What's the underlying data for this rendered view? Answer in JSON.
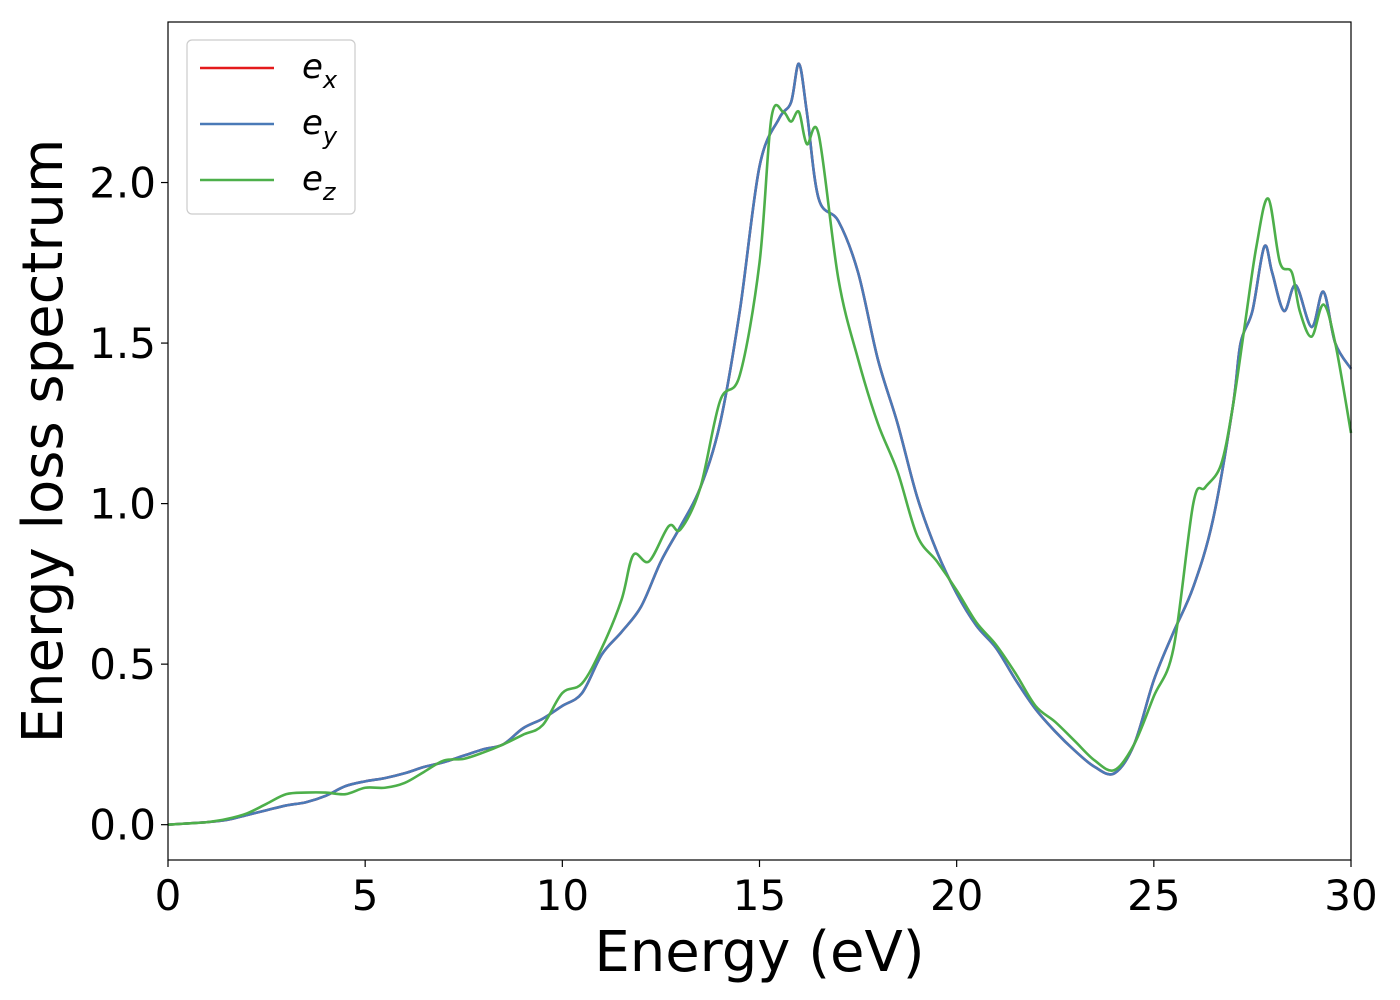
{
  "chart_data": {
    "type": "line",
    "xlabel": "Energy (eV)",
    "ylabel": "Energy loss spectrum",
    "xlim": [
      0,
      30
    ],
    "ylim": [
      -0.11,
      2.5
    ],
    "x_ticks": [
      "0",
      "5",
      "10",
      "15",
      "20",
      "25",
      "30"
    ],
    "y_ticks": [
      "0.0",
      "0.5",
      "1.0",
      "1.5",
      "2.0"
    ],
    "grid": false,
    "legend_position": "top-left",
    "series": [
      {
        "name": "e_x",
        "legend_base": "e",
        "legend_sub": "x",
        "color": "#e41a1c",
        "x": [
          0,
          0.5,
          1,
          1.5,
          2,
          2.5,
          3,
          3.5,
          4,
          4.5,
          5,
          5.5,
          6,
          6.5,
          7,
          7.5,
          8,
          8.5,
          9,
          9.5,
          10,
          10.5,
          11,
          11.5,
          12,
          12.5,
          13,
          13.5,
          14,
          14.5,
          15,
          15.5,
          15.8,
          16,
          16.2,
          16.5,
          17,
          17.5,
          18,
          18.5,
          19,
          19.5,
          20,
          20.5,
          21,
          21.5,
          22,
          22.5,
          23,
          23.5,
          24,
          24.5,
          25,
          25.5,
          26,
          26.5,
          27,
          27.2,
          27.5,
          27.8,
          28,
          28.3,
          28.6,
          29,
          29.3,
          29.6,
          30
        ],
        "y": [
          0,
          0.004,
          0.008,
          0.015,
          0.03,
          0.045,
          0.06,
          0.07,
          0.09,
          0.12,
          0.135,
          0.145,
          0.16,
          0.18,
          0.195,
          0.215,
          0.235,
          0.25,
          0.3,
          0.33,
          0.37,
          0.41,
          0.53,
          0.6,
          0.68,
          0.82,
          0.93,
          1.05,
          1.25,
          1.6,
          2.05,
          2.2,
          2.25,
          2.37,
          2.22,
          1.95,
          1.88,
          1.72,
          1.45,
          1.25,
          1.02,
          0.85,
          0.72,
          0.62,
          0.55,
          0.45,
          0.36,
          0.29,
          0.23,
          0.18,
          0.16,
          0.25,
          0.45,
          0.6,
          0.74,
          0.95,
          1.3,
          1.5,
          1.6,
          1.8,
          1.72,
          1.6,
          1.68,
          1.55,
          1.66,
          1.5,
          1.42
        ]
      },
      {
        "name": "e_y",
        "legend_base": "e",
        "legend_sub": "y",
        "color": "#4a7ab7",
        "x": [
          0,
          0.5,
          1,
          1.5,
          2,
          2.5,
          3,
          3.5,
          4,
          4.5,
          5,
          5.5,
          6,
          6.5,
          7,
          7.5,
          8,
          8.5,
          9,
          9.5,
          10,
          10.5,
          11,
          11.5,
          12,
          12.5,
          13,
          13.5,
          14,
          14.5,
          15,
          15.5,
          15.8,
          16,
          16.2,
          16.5,
          17,
          17.5,
          18,
          18.5,
          19,
          19.5,
          20,
          20.5,
          21,
          21.5,
          22,
          22.5,
          23,
          23.5,
          24,
          24.5,
          25,
          25.5,
          26,
          26.5,
          27,
          27.2,
          27.5,
          27.8,
          28,
          28.3,
          28.6,
          29,
          29.3,
          29.6,
          30
        ],
        "y": [
          0,
          0.004,
          0.008,
          0.015,
          0.03,
          0.045,
          0.06,
          0.07,
          0.09,
          0.12,
          0.135,
          0.145,
          0.16,
          0.18,
          0.195,
          0.215,
          0.235,
          0.25,
          0.3,
          0.33,
          0.37,
          0.41,
          0.53,
          0.6,
          0.68,
          0.82,
          0.93,
          1.05,
          1.25,
          1.6,
          2.05,
          2.2,
          2.25,
          2.37,
          2.22,
          1.95,
          1.88,
          1.72,
          1.45,
          1.25,
          1.02,
          0.85,
          0.72,
          0.62,
          0.55,
          0.45,
          0.36,
          0.29,
          0.23,
          0.18,
          0.16,
          0.25,
          0.45,
          0.6,
          0.74,
          0.95,
          1.3,
          1.5,
          1.6,
          1.8,
          1.72,
          1.6,
          1.68,
          1.55,
          1.66,
          1.5,
          1.42
        ]
      },
      {
        "name": "e_z",
        "legend_base": "e",
        "legend_sub": "z",
        "color": "#4daf4a",
        "x": [
          0,
          0.5,
          1,
          1.5,
          2,
          2.5,
          3,
          3.5,
          4,
          4.5,
          5,
          5.5,
          6,
          6.5,
          7,
          7.5,
          8,
          8.5,
          9,
          9.5,
          10,
          10.5,
          11,
          11.5,
          11.8,
          12.2,
          12.7,
          13,
          13.5,
          14,
          14.5,
          15,
          15.3,
          15.6,
          15.8,
          16,
          16.2,
          16.5,
          17,
          17.5,
          18,
          18.5,
          19,
          19.5,
          20,
          20.5,
          21,
          21.5,
          22,
          22.5,
          23,
          23.5,
          24,
          24.5,
          25,
          25.5,
          26,
          26.3,
          26.7,
          27,
          27.3,
          27.6,
          27.9,
          28.2,
          28.5,
          28.7,
          29,
          29.3,
          29.6,
          30
        ],
        "y": [
          0,
          0.004,
          0.008,
          0.018,
          0.035,
          0.065,
          0.095,
          0.1,
          0.1,
          0.095,
          0.115,
          0.115,
          0.13,
          0.165,
          0.2,
          0.205,
          0.225,
          0.25,
          0.28,
          0.31,
          0.41,
          0.44,
          0.55,
          0.7,
          0.84,
          0.82,
          0.93,
          0.92,
          1.05,
          1.32,
          1.4,
          1.75,
          2.2,
          2.22,
          2.19,
          2.22,
          2.12,
          2.15,
          1.7,
          1.45,
          1.25,
          1.1,
          0.9,
          0.82,
          0.73,
          0.63,
          0.56,
          0.47,
          0.37,
          0.32,
          0.26,
          0.2,
          0.17,
          0.25,
          0.4,
          0.55,
          1.0,
          1.05,
          1.12,
          1.3,
          1.55,
          1.8,
          1.95,
          1.75,
          1.72,
          1.6,
          1.52,
          1.62,
          1.5,
          1.22
        ]
      }
    ]
  }
}
